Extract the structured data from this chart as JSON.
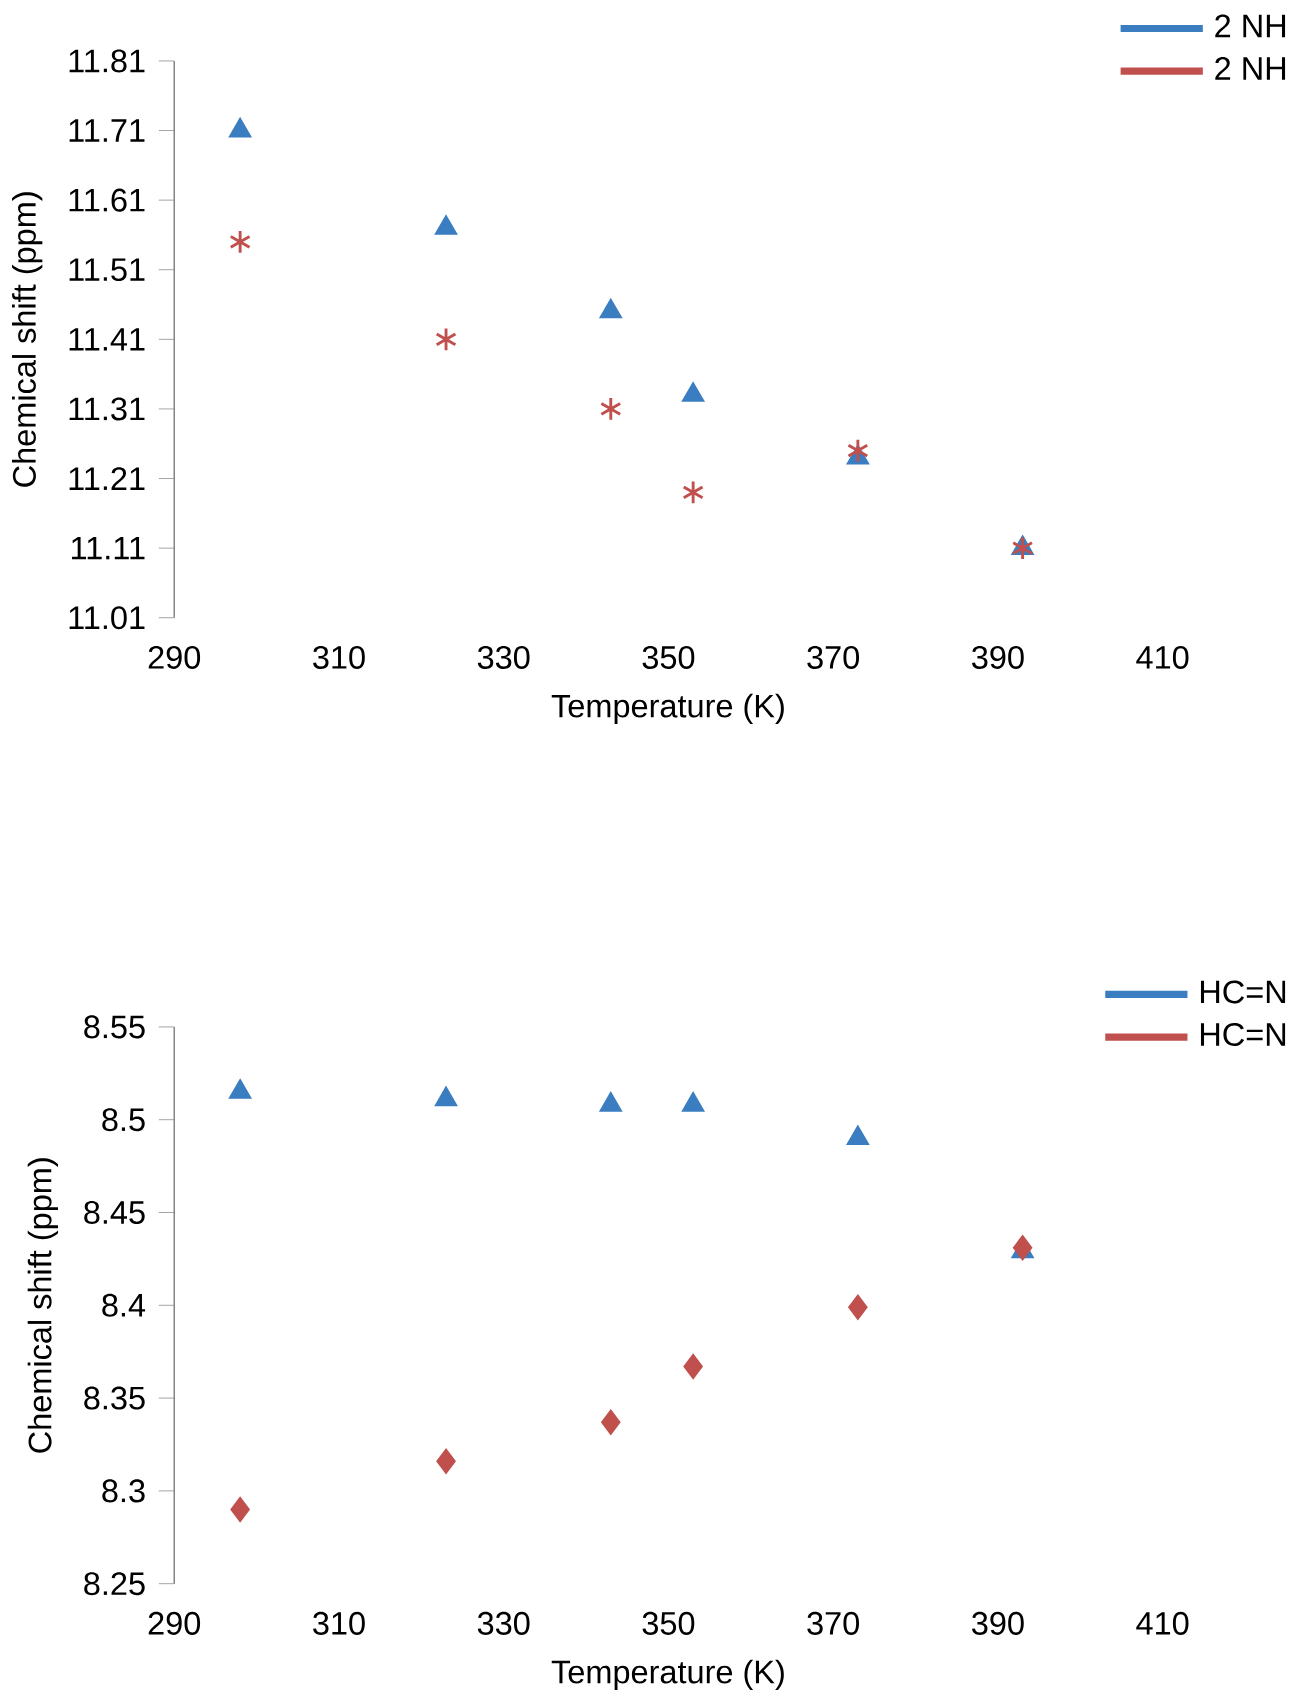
{
  "chart_data": [
    {
      "type": "scatter",
      "xlabel": "Temperature (K)",
      "ylabel": "Chemical shift (ppm)",
      "x": [
        298,
        323,
        343,
        353,
        373,
        393
      ],
      "xlim": [
        290,
        410
      ],
      "xticks": [
        290,
        310,
        330,
        350,
        370,
        390,
        410
      ],
      "ylim": [
        11.01,
        11.81
      ],
      "yticks": [
        11.01,
        11.11,
        11.21,
        11.31,
        11.41,
        11.51,
        11.61,
        11.71,
        11.81
      ],
      "grid": false,
      "legend": "top right",
      "series": [
        {
          "name": "2 NH",
          "color": "#3a7dc0",
          "marker": "triangle",
          "values": [
            11.71,
            11.57,
            11.45,
            11.33,
            11.24,
            11.11
          ]
        },
        {
          "name": "2 NH",
          "color": "#c0504d",
          "marker": "cross",
          "values": [
            11.55,
            11.41,
            11.31,
            11.19,
            11.25,
            11.11
          ]
        }
      ]
    },
    {
      "type": "scatter",
      "xlabel": "Temperature (K)",
      "ylabel": "Chemical shift (ppm)",
      "x": [
        298,
        323,
        343,
        353,
        373,
        393
      ],
      "xlim": [
        290,
        410
      ],
      "xticks": [
        290,
        310,
        330,
        350,
        370,
        390,
        410
      ],
      "ylim": [
        8.25,
        8.55
      ],
      "yticks": [
        8.25,
        8.3,
        8.35,
        8.4,
        8.45,
        8.5,
        8.55
      ],
      "grid": false,
      "legend": "top right",
      "series": [
        {
          "name": "HC=N",
          "color": "#3a7dc0",
          "marker": "triangle",
          "values": [
            8.515,
            8.511,
            8.508,
            8.508,
            8.49,
            8.429
          ]
        },
        {
          "name": "HC=N",
          "color": "#c0504d",
          "marker": "diamond",
          "values": [
            8.29,
            8.316,
            8.337,
            8.367,
            8.399,
            8.431
          ]
        }
      ]
    }
  ]
}
